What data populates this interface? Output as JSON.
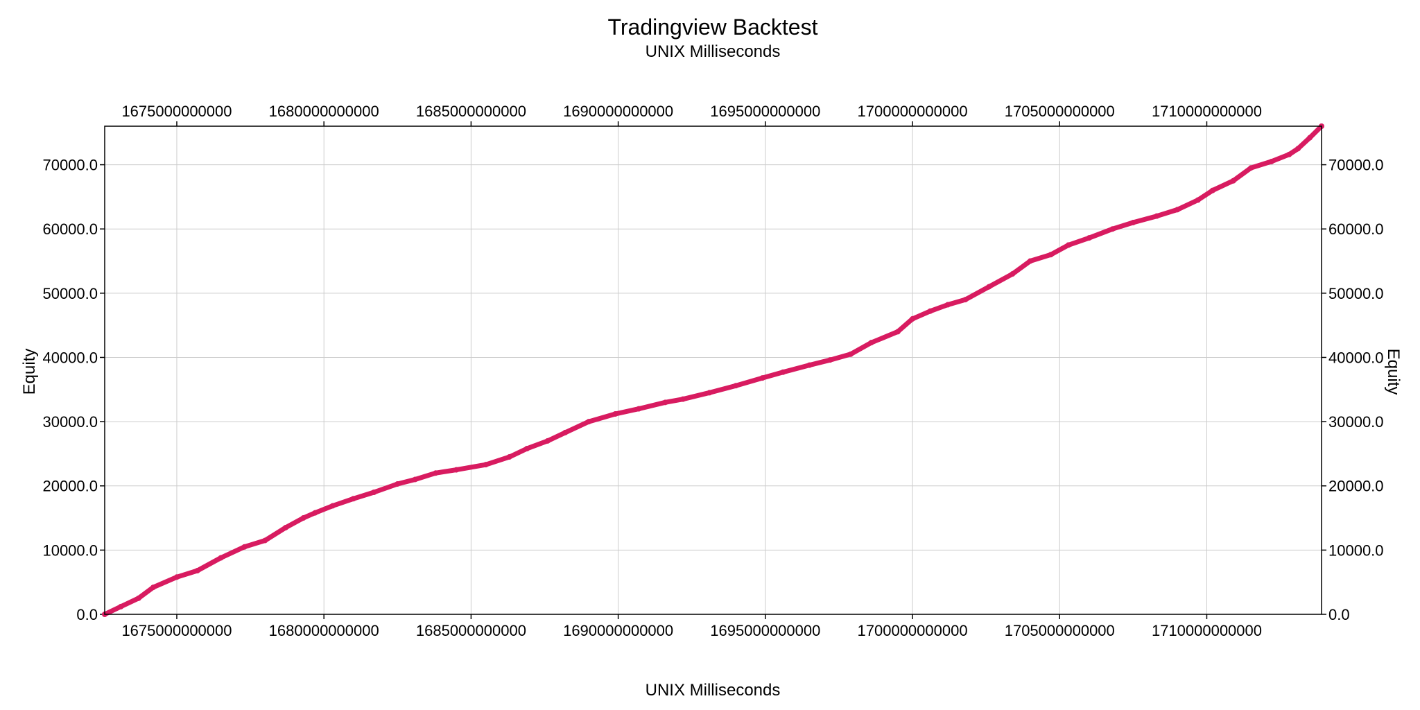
{
  "chart_data": {
    "type": "line",
    "title": "Tradingview Backtest",
    "subtitle": "UNIX Milliseconds",
    "xlabel": "UNIX Milliseconds",
    "ylabel": "Equity",
    "ylabel_right": "Equity",
    "xlim": [
      1672550000000,
      1713900000000
    ],
    "ylim": [
      0,
      76000
    ],
    "x_ticks": [
      1675000000000,
      1680000000000,
      1685000000000,
      1690000000000,
      1695000000000,
      1700000000000,
      1705000000000,
      1710000000000
    ],
    "x_tick_labels": [
      "1675000000000",
      "1680000000000",
      "1685000000000",
      "1690000000000",
      "1695000000000",
      "1700000000000",
      "1705000000000",
      "1710000000000"
    ],
    "y_ticks": [
      0,
      10000,
      20000,
      30000,
      40000,
      50000,
      60000,
      70000
    ],
    "y_tick_labels": [
      "0.0",
      "10000.0",
      "20000.0",
      "30000.0",
      "40000.0",
      "50000.0",
      "60000.0",
      "70000.0"
    ],
    "grid": true,
    "colors": {
      "line": "#d81b60",
      "grid": "#cccccc",
      "axis": "#000000"
    },
    "series": [
      {
        "x": [
          1672550000000,
          1673100000000,
          1673700000000,
          1674200000000,
          1675000000000,
          1675700000000,
          1676500000000,
          1677300000000,
          1678000000000,
          1678700000000,
          1679300000000,
          1679700000000,
          1680300000000,
          1681000000000,
          1681700000000,
          1682500000000,
          1683100000000,
          1683800000000,
          1684500000000,
          1685500000000,
          1686300000000,
          1686900000000,
          1687600000000,
          1688200000000,
          1689000000000,
          1689900000000,
          1690700000000,
          1691600000000,
          1692200000000,
          1693100000000,
          1694000000000,
          1694900000000,
          1695600000000,
          1696500000000,
          1697200000000,
          1697900000000,
          1698600000000,
          1699500000000,
          1700000000000,
          1700600000000,
          1701200000000,
          1701800000000,
          1702600000000,
          1703400000000,
          1704000000000,
          1704700000000,
          1705300000000,
          1706000000000,
          1706800000000,
          1707500000000,
          1708300000000,
          1709000000000,
          1709700000000,
          1710200000000,
          1710900000000,
          1711500000000,
          1712200000000,
          1712800000000,
          1713100000000,
          1713500000000,
          1713900000000
        ],
        "values": [
          0,
          1200,
          2500,
          4200,
          5800,
          6800,
          8800,
          10500,
          11500,
          13500,
          15000,
          15800,
          16900,
          18000,
          19000,
          20300,
          21000,
          22000,
          22500,
          23300,
          24500,
          25800,
          27000,
          28300,
          30000,
          31200,
          32000,
          33000,
          33500,
          34500,
          35600,
          36800,
          37700,
          38800,
          39600,
          40500,
          42300,
          44000,
          46000,
          47200,
          48200,
          49000,
          51000,
          53000,
          55000,
          56000,
          57500,
          58600,
          60000,
          61000,
          62000,
          63000,
          64500,
          66000,
          67500,
          69500,
          70500,
          71600,
          72500,
          74200,
          76000
        ]
      }
    ]
  }
}
